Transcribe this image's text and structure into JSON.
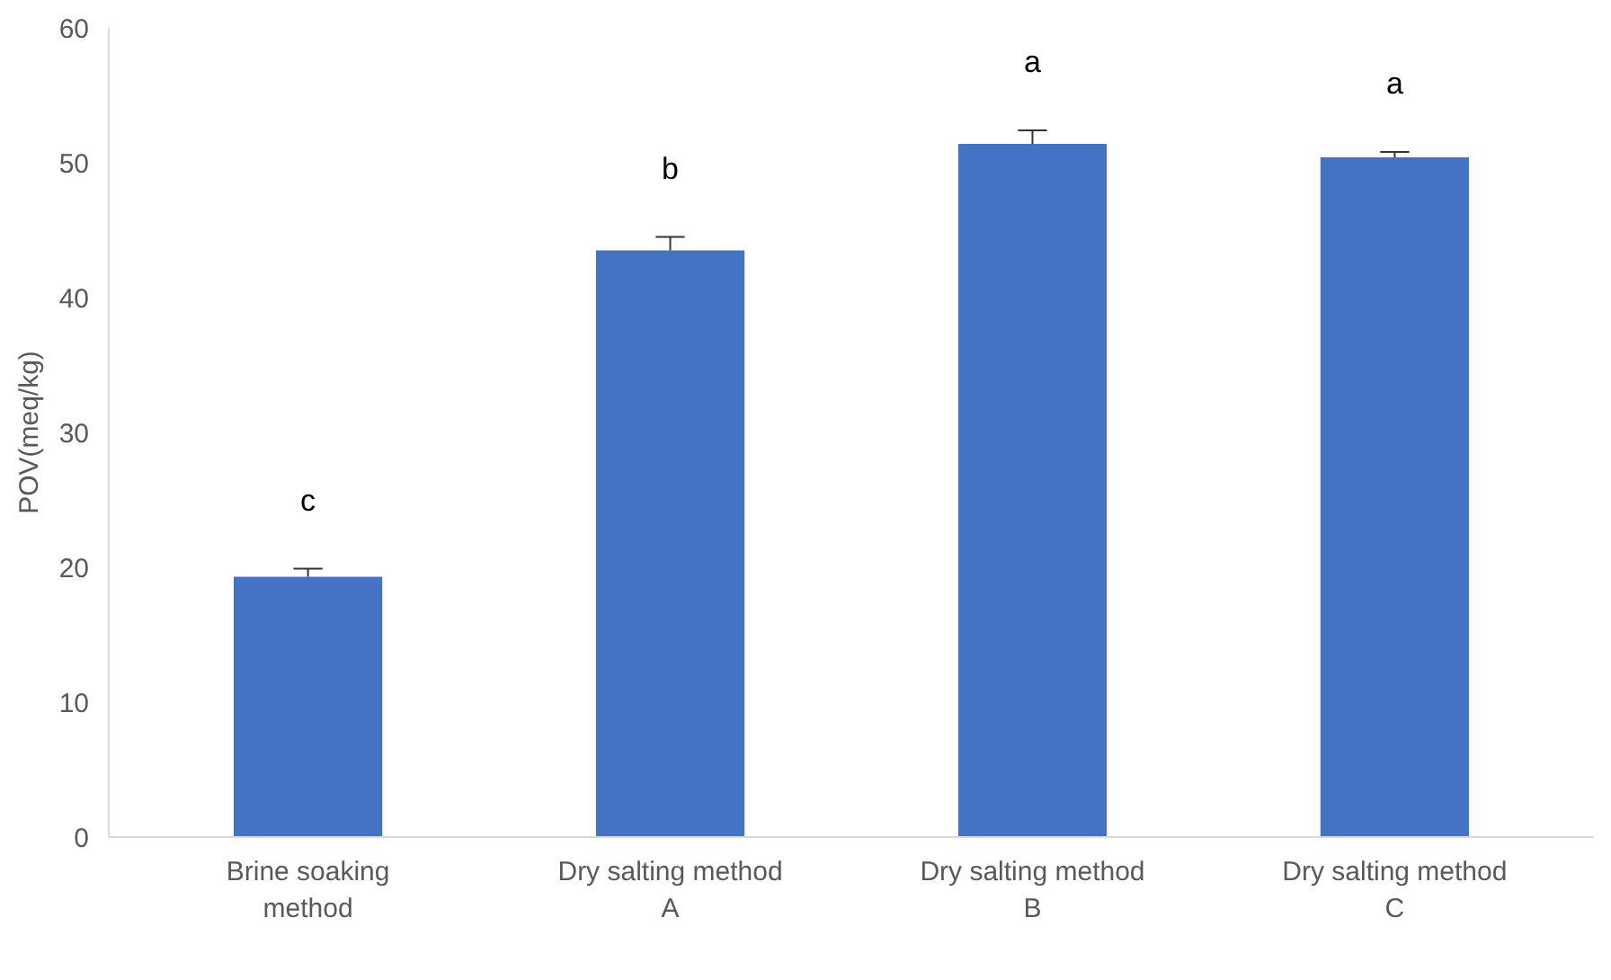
{
  "chart_data": {
    "type": "bar",
    "ylabel": "POV(meq/kg)",
    "categories": [
      "Brine soaking method",
      "Dry salting method A",
      "Dry salting method B",
      "Dry salting method C"
    ],
    "values": [
      19.3,
      43.5,
      51.4,
      50.4
    ],
    "errors": [
      [
        19.3,
        19.9
      ],
      [
        43.5,
        44.5
      ],
      [
        51.4,
        52.4
      ],
      [
        50.4,
        50.8
      ]
    ],
    "color": "#4472c4",
    "ylim": [
      0,
      60
    ],
    "yticks": [
      0,
      10,
      20,
      30,
      40,
      50,
      60
    ],
    "grid": false,
    "annotations": [
      "c",
      "b",
      "a",
      "a"
    ]
  }
}
